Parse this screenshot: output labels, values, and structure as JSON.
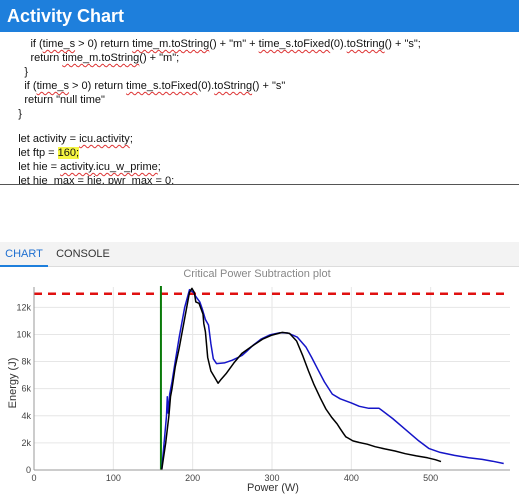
{
  "app": {
    "title": "Activity Chart"
  },
  "editor": {
    "lines": [
      [
        {
          "t": "        if ("
        },
        {
          "t": "time_s",
          "s": 1
        },
        {
          "t": " > 0) return "
        },
        {
          "t": "time_m.toString",
          "s": 1
        },
        {
          "t": "() + \"m\" + "
        },
        {
          "t": "time_s.toFixed",
          "s": 1
        },
        {
          "t": "(0)."
        },
        {
          "t": "toString",
          "s": 1
        },
        {
          "t": "() + \"s\";"
        }
      ],
      [
        {
          "t": "        return "
        },
        {
          "t": "time_m.toString",
          "s": 1
        },
        {
          "t": "() + \"m\";"
        }
      ],
      [
        {
          "t": "      }"
        }
      ],
      [
        {
          "t": "      if ("
        },
        {
          "t": "time_s",
          "s": 1
        },
        {
          "t": " > 0) return "
        },
        {
          "t": "time_s.toFixed",
          "s": 1
        },
        {
          "t": "(0)."
        },
        {
          "t": "toString",
          "s": 1
        },
        {
          "t": "() + \"s\""
        }
      ],
      [
        {
          "t": "      return \"null time\""
        }
      ],
      [
        {
          "t": "    }"
        }
      ],
      [
        {
          "t": ""
        }
      ],
      [
        {
          "t": "    let activity = "
        },
        {
          "t": "icu.activity",
          "s": 1
        },
        {
          "t": ";"
        }
      ],
      [
        {
          "t": "    let ftp = "
        },
        {
          "t": "160;",
          "h": 1
        }
      ],
      [
        {
          "t": "    let hie = "
        },
        {
          "t": "activity.icu_w_prime",
          "s": 1
        },
        {
          "t": ";"
        }
      ],
      [
        {
          "t": "    let "
        },
        {
          "t": "hie_max",
          "s": 1
        },
        {
          "t": " = hie, "
        },
        {
          "t": "pwr_max",
          "s": 1
        },
        {
          "t": " = 0;"
        }
      ]
    ]
  },
  "tabs": [
    {
      "label": "CHART",
      "active": true
    },
    {
      "label": "CONSOLE",
      "active": false
    }
  ],
  "chart_data": {
    "type": "line",
    "title": "Critical Power Subtraction plot",
    "xlabel": "Power (W)",
    "ylabel": "Energy (J)",
    "xlim": [
      0,
      600
    ],
    "ylim": [
      0,
      13500
    ],
    "x_ticks": [
      0,
      100,
      200,
      300,
      400,
      500
    ],
    "y_ticks": [
      0,
      2000,
      4000,
      6000,
      8000,
      10000,
      12000
    ],
    "x_tick_labels": [
      "0",
      "100",
      "200",
      "300",
      "400",
      "500"
    ],
    "y_tick_labels": [
      "0",
      "2k",
      "4k",
      "6k",
      "8k",
      "10k",
      "12k"
    ],
    "grid": true,
    "colors": {
      "blue": "#1515c8",
      "black": "#000000",
      "red": "#e01010",
      "green": "#0a7a0a"
    },
    "reference_lines": [
      {
        "orientation": "horizontal",
        "y": 13000,
        "style": "dashed",
        "color": "#e01010"
      },
      {
        "orientation": "vertical",
        "x": 160,
        "style": "solid",
        "color": "#0a7a0a"
      }
    ],
    "series": [
      {
        "color": "#1515c8",
        "points": [
          [
            161,
            0
          ],
          [
            164,
            2000
          ],
          [
            167,
            4000
          ],
          [
            168,
            5400
          ],
          [
            169,
            4200
          ],
          [
            171,
            5600
          ],
          [
            174,
            6500
          ],
          [
            178,
            8000
          ],
          [
            183,
            9800
          ],
          [
            190,
            12000
          ],
          [
            196,
            13300
          ],
          [
            201,
            13100
          ],
          [
            204,
            12800
          ],
          [
            209,
            12400
          ],
          [
            212,
            11900
          ],
          [
            216,
            11100
          ],
          [
            220,
            10700
          ],
          [
            223,
            9300
          ],
          [
            226,
            8200
          ],
          [
            230,
            7850
          ],
          [
            240,
            7900
          ],
          [
            250,
            8100
          ],
          [
            257,
            8300
          ],
          [
            262,
            8450
          ],
          [
            268,
            8750
          ],
          [
            276,
            9200
          ],
          [
            286,
            9650
          ],
          [
            298,
            9980
          ],
          [
            310,
            10130
          ],
          [
            320,
            10110
          ],
          [
            332,
            9800
          ],
          [
            343,
            9050
          ],
          [
            350,
            8300
          ],
          [
            358,
            7400
          ],
          [
            366,
            6500
          ],
          [
            376,
            5600
          ],
          [
            386,
            5250
          ],
          [
            400,
            4950
          ],
          [
            410,
            4700
          ],
          [
            422,
            4550
          ],
          [
            435,
            4550
          ],
          [
            452,
            3800
          ],
          [
            467,
            3050
          ],
          [
            485,
            2150
          ],
          [
            498,
            1580
          ],
          [
            512,
            1300
          ],
          [
            530,
            1080
          ],
          [
            548,
            900
          ],
          [
            565,
            780
          ],
          [
            578,
            650
          ],
          [
            592,
            480
          ]
        ]
      },
      {
        "color": "#000000",
        "points": [
          [
            161,
            0
          ],
          [
            166,
            2000
          ],
          [
            170,
            4000
          ],
          [
            172,
            5400
          ],
          [
            174,
            6000
          ],
          [
            178,
            7600
          ],
          [
            183,
            9000
          ],
          [
            190,
            11200
          ],
          [
            196,
            13100
          ],
          [
            199,
            13400
          ],
          [
            202,
            13100
          ],
          [
            204,
            12400
          ],
          [
            208,
            12300
          ],
          [
            213,
            11500
          ],
          [
            214,
            10800
          ],
          [
            216,
            10200
          ],
          [
            219,
            8300
          ],
          [
            223,
            7300
          ],
          [
            228,
            6800
          ],
          [
            232,
            6400
          ],
          [
            236,
            6700
          ],
          [
            242,
            7100
          ],
          [
            252,
            7900
          ],
          [
            262,
            8600
          ],
          [
            274,
            9100
          ],
          [
            288,
            9650
          ],
          [
            300,
            9950
          ],
          [
            313,
            10150
          ],
          [
            322,
            10080
          ],
          [
            331,
            9520
          ],
          [
            339,
            8400
          ],
          [
            346,
            7300
          ],
          [
            353,
            6300
          ],
          [
            361,
            5300
          ],
          [
            368,
            4500
          ],
          [
            375,
            3900
          ],
          [
            382,
            3400
          ],
          [
            386,
            3050
          ],
          [
            390,
            2700
          ],
          [
            393,
            2450
          ],
          [
            396,
            2350
          ],
          [
            402,
            2150
          ],
          [
            410,
            2030
          ],
          [
            420,
            1900
          ],
          [
            430,
            1720
          ],
          [
            442,
            1560
          ],
          [
            455,
            1400
          ],
          [
            468,
            1200
          ],
          [
            482,
            1040
          ],
          [
            496,
            900
          ],
          [
            506,
            760
          ],
          [
            513,
            620
          ]
        ]
      }
    ]
  }
}
